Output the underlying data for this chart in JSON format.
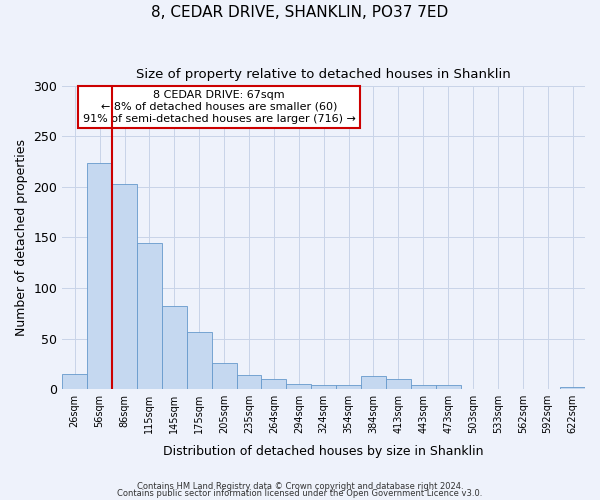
{
  "title": "8, CEDAR DRIVE, SHANKLIN, PO37 7ED",
  "subtitle": "Size of property relative to detached houses in Shanklin",
  "xlabel": "Distribution of detached houses by size in Shanklin",
  "ylabel": "Number of detached properties",
  "bin_labels": [
    "26sqm",
    "56sqm",
    "86sqm",
    "115sqm",
    "145sqm",
    "175sqm",
    "205sqm",
    "235sqm",
    "264sqm",
    "294sqm",
    "324sqm",
    "354sqm",
    "384sqm",
    "413sqm",
    "443sqm",
    "473sqm",
    "503sqm",
    "533sqm",
    "562sqm",
    "592sqm",
    "622sqm"
  ],
  "bar_values": [
    15,
    224,
    203,
    145,
    82,
    57,
    26,
    14,
    10,
    5,
    4,
    4,
    13,
    10,
    4,
    4,
    0,
    0,
    0,
    0,
    2
  ],
  "bar_color": "#c5d8f0",
  "bar_edge_color": "#6699cc",
  "ylim": [
    0,
    300
  ],
  "yticks": [
    0,
    50,
    100,
    150,
    200,
    250,
    300
  ],
  "red_line_x": 1.5,
  "annotation_title": "8 CEDAR DRIVE: 67sqm",
  "annotation_line1": "← 8% of detached houses are smaller (60)",
  "annotation_line2": "91% of semi-detached houses are larger (716) →",
  "annotation_box_color": "#ffffff",
  "annotation_box_edge": "#cc0000",
  "footer1": "Contains HM Land Registry data © Crown copyright and database right 2024.",
  "footer2": "Contains public sector information licensed under the Open Government Licence v3.0.",
  "background_color": "#eef2fb",
  "grid_color": "#c8d4e8"
}
